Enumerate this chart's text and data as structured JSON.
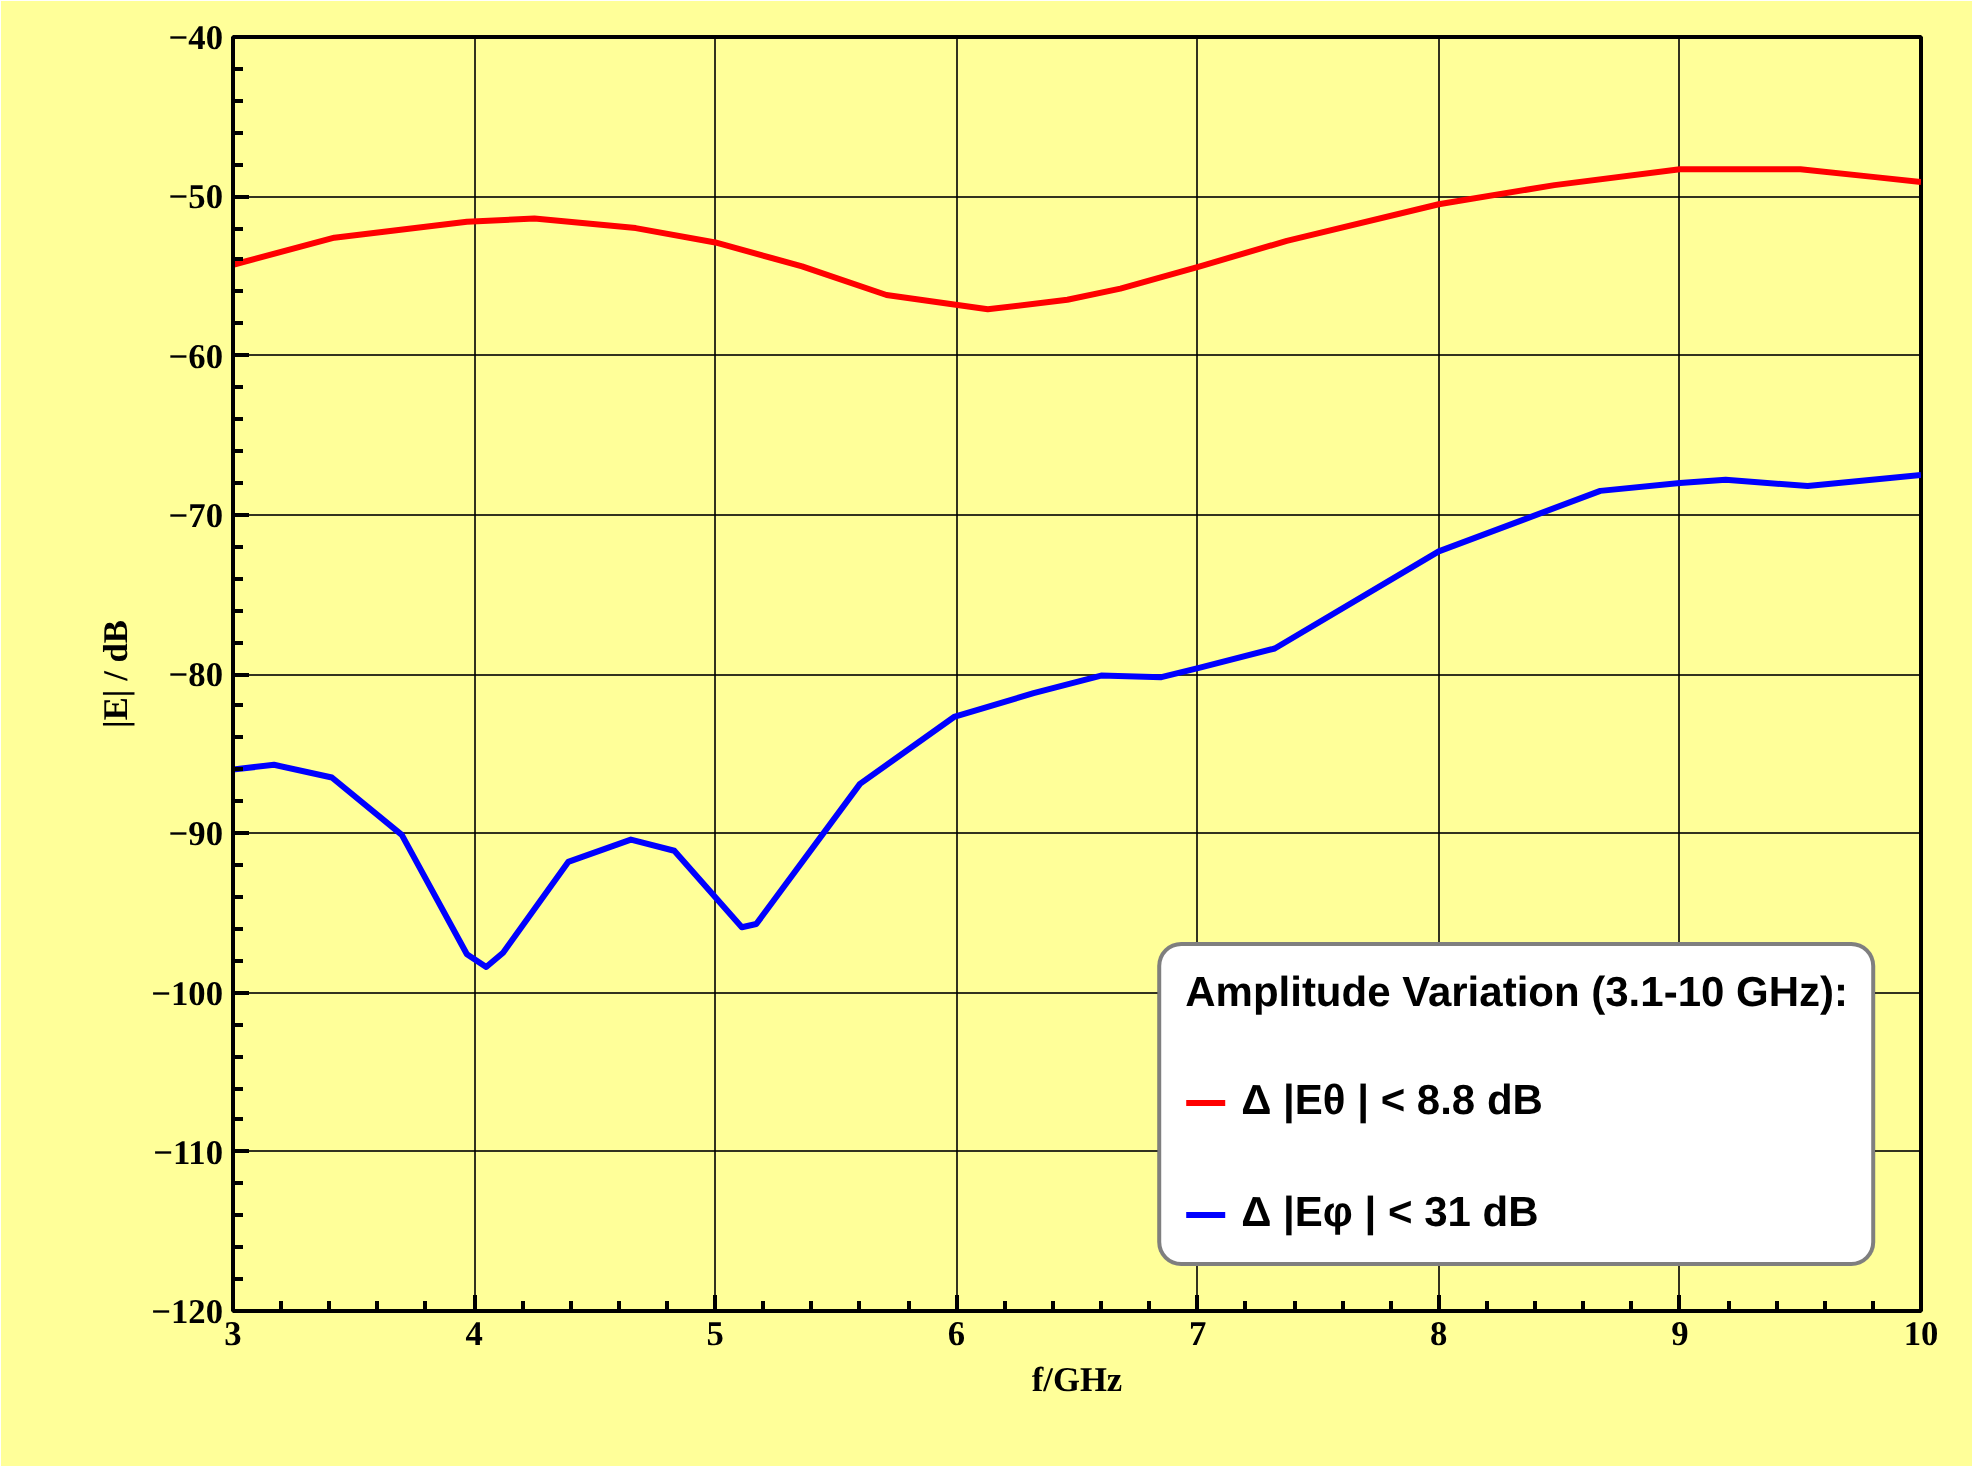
{
  "chart_data": {
    "type": "line",
    "xlabel": "f/GHz",
    "ylabel": "|E| / dB",
    "legend_title": "Amplitude Variation (3.1-10 GHz):",
    "xlim": [
      3,
      10
    ],
    "ylim": [
      -120,
      -40
    ],
    "xticks": [
      3,
      4,
      5,
      6,
      7,
      8,
      9,
      10
    ],
    "yticks": [
      -120,
      -110,
      -100,
      -90,
      -80,
      -70,
      -60,
      -50,
      -40
    ],
    "grid": true,
    "legend": "bottom right",
    "marker": "none",
    "line_style": "solid",
    "series": [
      {
        "name": "Δ |Eθ | < 8.8 dB",
        "color": "#ff0000",
        "x": [
          3.0,
          3.42,
          3.97,
          4.25,
          4.67,
          5.0,
          5.36,
          5.71,
          6.13,
          6.46,
          6.68,
          7.01,
          7.37,
          8.0,
          8.48,
          9.0,
          9.5,
          9.81,
          10.0
        ],
        "values": [
          -54.3,
          -52.6,
          -51.6,
          -51.4,
          -52.0,
          -52.9,
          -54.4,
          -56.2,
          -57.1,
          -56.5,
          -55.8,
          -54.4,
          -52.8,
          -50.5,
          -49.3,
          -48.3,
          -48.3,
          -48.8,
          -49.1
        ]
      },
      {
        "name": "Δ |Eφ | < 31 dB",
        "color": "#0000ff",
        "x": [
          3.0,
          3.17,
          3.41,
          3.7,
          3.97,
          4.05,
          4.12,
          4.39,
          4.65,
          4.83,
          5.11,
          5.17,
          5.6,
          5.99,
          6.32,
          6.6,
          6.85,
          7.01,
          7.32,
          8.0,
          8.67,
          9.0,
          9.19,
          9.53,
          10.0
        ],
        "values": [
          -86.0,
          -85.7,
          -86.5,
          -90.1,
          -97.6,
          -98.4,
          -97.5,
          -91.8,
          -90.4,
          -91.1,
          -95.9,
          -95.7,
          -86.9,
          -82.7,
          -81.2,
          -80.1,
          -80.2,
          -79.6,
          -78.4,
          -72.3,
          -68.5,
          -68.0,
          -67.8,
          -68.2,
          -67.5
        ]
      }
    ]
  }
}
